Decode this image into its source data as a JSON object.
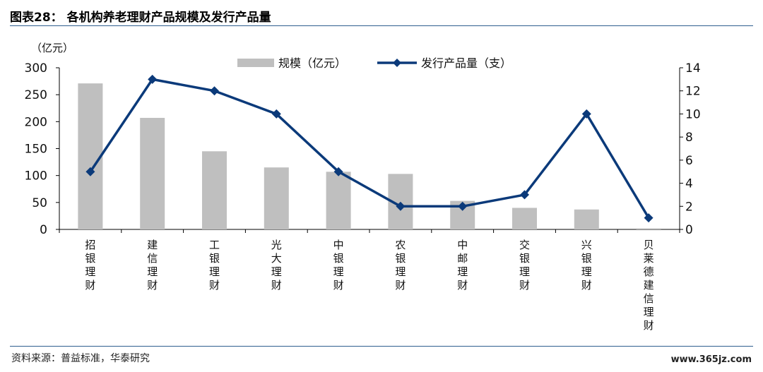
{
  "title": "图表28： 各机构养老理财产品规模及发行产品量",
  "source": "资料来源：普益标准，华泰研究",
  "watermark": "www.365jz.com",
  "chart_data": {
    "type": "bar",
    "categories": [
      "招银理财",
      "建信理财",
      "工银理财",
      "光大理财",
      "中银理财",
      "农银理财",
      "中邮理财",
      "交银理财",
      "兴银理财",
      "贝莱德建信理财"
    ],
    "series": [
      {
        "name": "规模（亿元）",
        "type": "bar",
        "axis": "left",
        "color": "#bfbfbf",
        "values": [
          271,
          207,
          145,
          115,
          107,
          103,
          53,
          40,
          37,
          2
        ]
      },
      {
        "name": "发行产品量（支）",
        "type": "line",
        "axis": "right",
        "color": "#0b3a7a",
        "values": [
          5,
          13,
          12,
          10,
          5,
          2,
          2,
          3,
          10,
          1
        ]
      }
    ],
    "y_left": {
      "unit": "（亿元）",
      "range": [
        0,
        300
      ],
      "ticks": [
        "0",
        "50",
        "100",
        "150",
        "200",
        "250",
        "300"
      ]
    },
    "y_right": {
      "range": [
        0,
        14
      ],
      "ticks": [
        "0",
        "2",
        "4",
        "6",
        "8",
        "10",
        "12",
        "14"
      ]
    },
    "legend_position": "top-center",
    "grid": false
  }
}
